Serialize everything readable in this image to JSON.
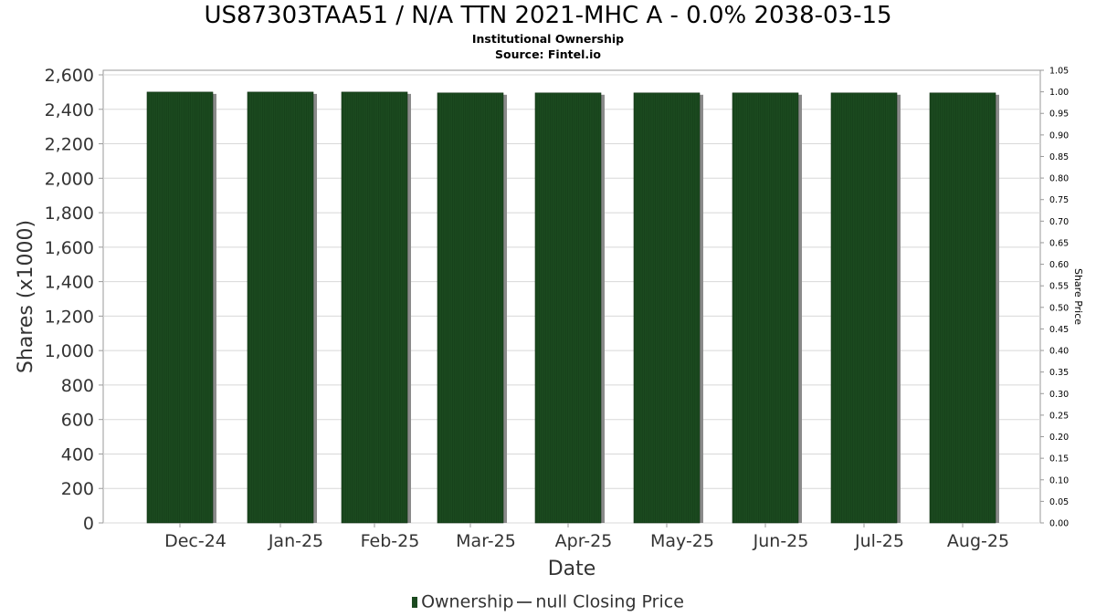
{
  "title": "US87303TAA51 / N/A TTN 2021-MHC A - 0.0% 2038-03-15",
  "subtitle": "Institutional Ownership",
  "source": "Source: Fintel.io",
  "legend": {
    "ownership_label": "Ownership",
    "price_label": "null Closing Price"
  },
  "colors": {
    "bar": "#1b4a1f",
    "bar_shadow": "#8a8a8a",
    "grid": "#d8d8d8",
    "axis_text": "#333333"
  },
  "chart_data": {
    "type": "bar",
    "xlabel": "Date",
    "ylabel": "Shares (x1000)",
    "y2label": "Share Price",
    "categories": [
      "Dec-24",
      "Jan-25",
      "Feb-25",
      "Mar-25",
      "Apr-25",
      "May-25",
      "Jun-25",
      "Jul-25",
      "Aug-25"
    ],
    "series": [
      {
        "name": "Ownership",
        "values": [
          2500,
          2500,
          2500,
          2495,
          2495,
          2495,
          2495,
          2495,
          2495
        ]
      }
    ],
    "ylim": [
      0,
      2600
    ],
    "yticks": [
      "0",
      "200",
      "400",
      "600",
      "800",
      "1,000",
      "1,200",
      "1,400",
      "1,600",
      "1,800",
      "2,000",
      "2,200",
      "2,400",
      "2,600"
    ],
    "y2lim": [
      0,
      1.05
    ],
    "y2ticks": [
      "0.00",
      "0.05",
      "0.10",
      "0.15",
      "0.20",
      "0.25",
      "0.30",
      "0.35",
      "0.40",
      "0.45",
      "0.50",
      "0.55",
      "0.60",
      "0.65",
      "0.70",
      "0.75",
      "0.80",
      "0.85",
      "0.90",
      "0.95",
      "1.00",
      "1.05"
    ],
    "grid": true,
    "legend_position": "bottom"
  }
}
